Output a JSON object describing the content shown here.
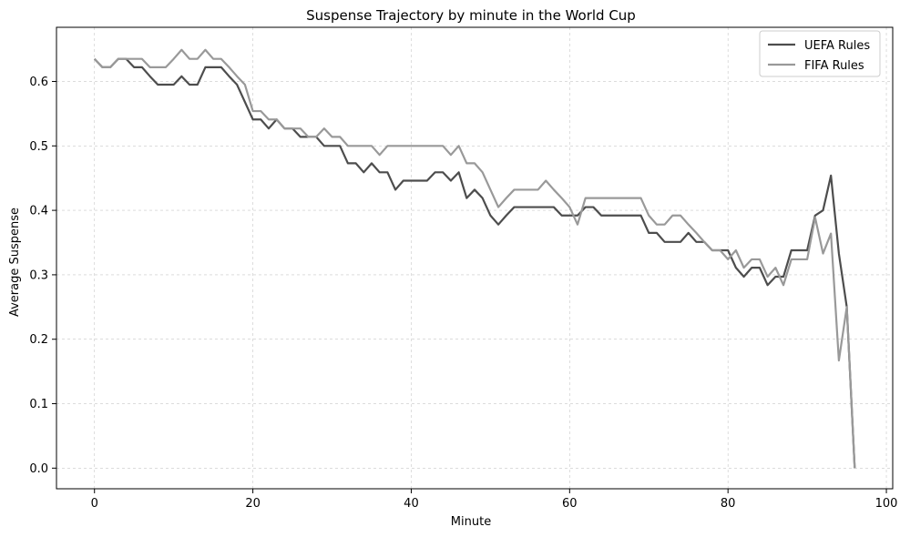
{
  "chart_data": {
    "type": "line",
    "title": "Suspense Trajectory by minute in the World Cup",
    "xlabel": "Minute",
    "ylabel": "Average Suspense",
    "xlim": [
      -4.8,
      100.8
    ],
    "ylim": [
      -0.032,
      0.684
    ],
    "xticks": [
      0,
      20,
      40,
      60,
      80,
      100
    ],
    "yticks": [
      0.0,
      0.1,
      0.2,
      0.3,
      0.4,
      0.5,
      0.6
    ],
    "xtick_labels": [
      "0",
      "20",
      "40",
      "60",
      "80",
      "100"
    ],
    "ytick_labels": [
      "0.0",
      "0.1",
      "0.2",
      "0.3",
      "0.4",
      "0.5",
      "0.6"
    ],
    "grid": true,
    "legend_position": "top-right",
    "x": [
      0,
      1,
      2,
      3,
      4,
      5,
      6,
      7,
      8,
      9,
      10,
      11,
      12,
      13,
      14,
      15,
      16,
      17,
      18,
      19,
      20,
      21,
      22,
      23,
      24,
      25,
      26,
      27,
      28,
      29,
      30,
      31,
      32,
      33,
      34,
      35,
      36,
      37,
      38,
      39,
      40,
      41,
      42,
      43,
      44,
      45,
      46,
      47,
      48,
      49,
      50,
      51,
      52,
      53,
      54,
      55,
      56,
      57,
      58,
      59,
      60,
      61,
      62,
      63,
      64,
      65,
      66,
      67,
      68,
      69,
      70,
      71,
      72,
      73,
      74,
      75,
      76,
      77,
      78,
      79,
      80,
      81,
      82,
      83,
      84,
      85,
      86,
      87,
      88,
      89,
      90,
      91,
      92,
      93,
      94,
      95,
      96
    ],
    "series": [
      {
        "name": "UEFA Rules",
        "color": "#4d4d4d",
        "values": [
          0.635,
          0.622,
          0.622,
          0.635,
          0.635,
          0.622,
          0.622,
          0.608,
          0.595,
          0.595,
          0.595,
          0.608,
          0.595,
          0.595,
          0.622,
          0.622,
          0.622,
          0.608,
          0.595,
          0.568,
          0.541,
          0.541,
          0.527,
          0.541,
          0.527,
          0.527,
          0.514,
          0.514,
          0.514,
          0.5,
          0.5,
          0.5,
          0.473,
          0.473,
          0.459,
          0.473,
          0.459,
          0.459,
          0.432,
          0.446,
          0.446,
          0.446,
          0.446,
          0.459,
          0.459,
          0.446,
          0.459,
          0.419,
          0.432,
          0.419,
          0.392,
          0.378,
          0.392,
          0.405,
          0.405,
          0.405,
          0.405,
          0.405,
          0.405,
          0.392,
          0.392,
          0.392,
          0.405,
          0.405,
          0.392,
          0.392,
          0.392,
          0.392,
          0.392,
          0.392,
          0.365,
          0.365,
          0.351,
          0.351,
          0.351,
          0.365,
          0.351,
          0.351,
          0.338,
          0.338,
          0.338,
          0.311,
          0.297,
          0.311,
          0.311,
          0.284,
          0.297,
          0.297,
          0.338,
          0.338,
          0.338,
          0.392,
          0.4,
          0.454,
          0.333,
          0.25,
          0.0
        ]
      },
      {
        "name": "FIFA Rules",
        "color": "#999999",
        "values": [
          0.635,
          0.622,
          0.622,
          0.635,
          0.635,
          0.635,
          0.635,
          0.622,
          0.622,
          0.622,
          0.635,
          0.649,
          0.635,
          0.635,
          0.649,
          0.635,
          0.635,
          0.622,
          0.608,
          0.595,
          0.554,
          0.554,
          0.541,
          0.541,
          0.527,
          0.527,
          0.527,
          0.514,
          0.514,
          0.527,
          0.514,
          0.514,
          0.5,
          0.5,
          0.5,
          0.5,
          0.486,
          0.5,
          0.5,
          0.5,
          0.5,
          0.5,
          0.5,
          0.5,
          0.5,
          0.486,
          0.5,
          0.473,
          0.473,
          0.459,
          0.432,
          0.405,
          0.419,
          0.432,
          0.432,
          0.432,
          0.432,
          0.446,
          0.432,
          0.419,
          0.405,
          0.378,
          0.419,
          0.419,
          0.419,
          0.419,
          0.419,
          0.419,
          0.419,
          0.419,
          0.392,
          0.378,
          0.378,
          0.392,
          0.392,
          0.378,
          0.365,
          0.351,
          0.338,
          0.338,
          0.324,
          0.338,
          0.311,
          0.324,
          0.324,
          0.297,
          0.311,
          0.284,
          0.324,
          0.324,
          0.324,
          0.389,
          0.333,
          0.364,
          0.167,
          0.25,
          0.0
        ]
      }
    ]
  }
}
